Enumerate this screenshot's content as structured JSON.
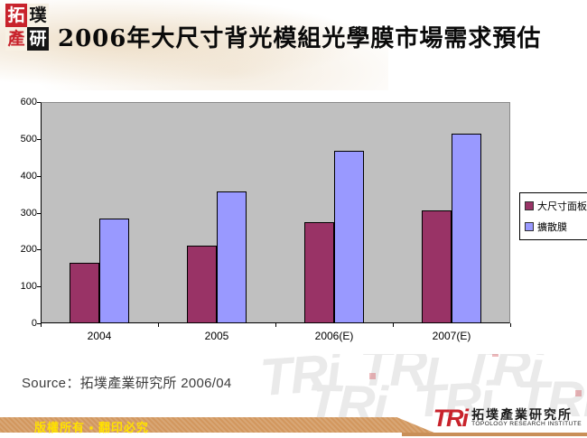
{
  "header": {
    "logo": {
      "chars": [
        "拓",
        "璞",
        "產",
        "研"
      ]
    },
    "title": "2006年大尺寸背光模組光學膜市場需求預估"
  },
  "chart_data": {
    "type": "bar",
    "categories": [
      "2004",
      "2005",
      "2006(E)",
      "2007(E)"
    ],
    "series": [
      {
        "name": "大尺寸面板",
        "color": "#993366",
        "values": [
          165,
          210,
          275,
          305
        ]
      },
      {
        "name": "擴散膜",
        "color": "#9999FF",
        "values": [
          283,
          357,
          468,
          515
        ]
      }
    ],
    "title": "",
    "xlabel": "",
    "ylabel": "",
    "ylim": [
      0,
      600
    ],
    "yticks": [
      0,
      100,
      200,
      300,
      400,
      500,
      600
    ],
    "grid": false,
    "plot_bg": "#C0C0C0",
    "legend_position": "right"
  },
  "source": "Source：拓墣產業研究所 2006/04",
  "footer": {
    "copyright": "版權所有 ▪ 翻印必究",
    "logo_acronym": "TRi",
    "logo_name_zh": "拓墣產業研究所",
    "logo_name_en": "TOPOLOGY RESEARCH INSTITUTE"
  },
  "watermark": {
    "text": "TRi"
  },
  "colors": {
    "series1": "#993366",
    "series2": "#9999FF",
    "plot_background": "#C0C0C0",
    "footer_bar": "#D2975E",
    "copyright_text": "#FFE100",
    "logo_red": "#C8232C"
  }
}
